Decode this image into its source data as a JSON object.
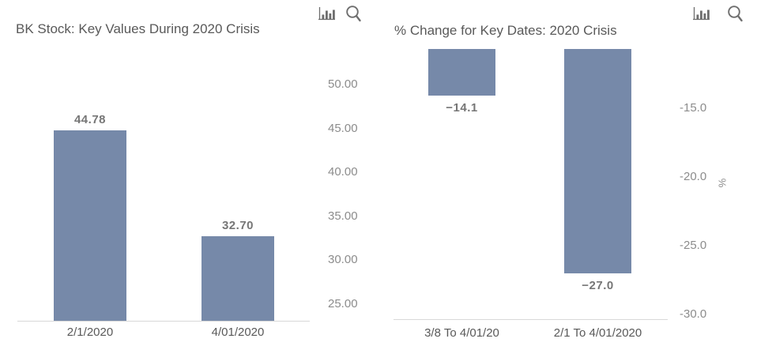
{
  "colors": {
    "bar": "#7689a9",
    "title_text": "#595959",
    "tick_text": "#8c8c8c",
    "axis_line": "#d8d8d8"
  },
  "toolbar": {
    "chart_type_icon": "bar-chart-icon",
    "zoom_icon": "magnifier-icon"
  },
  "chart_data": [
    {
      "type": "bar",
      "title": "BK Stock: Key Values During 2020 Crisis",
      "categories": [
        "2/1/2020",
        "4/01/2020"
      ],
      "values": [
        44.78,
        32.7
      ],
      "value_labels": [
        "44.78",
        "32.70"
      ],
      "xlabel": "",
      "ylabel": "",
      "yticks": [
        50,
        45,
        40,
        35,
        30,
        25
      ],
      "ytick_labels": [
        "50.00",
        "45.00",
        "40.00",
        "35.00",
        "30.00",
        "25.00"
      ],
      "ylim_displayed": [
        22.9,
        52.8
      ],
      "axis_side": "right",
      "grid": false,
      "bar_color": "#7689a9"
    },
    {
      "type": "bar",
      "title": "% Change for Key Dates: 2020 Crisis",
      "categories": [
        "3/8 To 4/01/20",
        "2/1 To 4/01/2020"
      ],
      "values": [
        -14.1,
        -27.0
      ],
      "value_labels": [
        "−14.1",
        "−27.0"
      ],
      "xlabel": "",
      "ylabel": "%",
      "yticks": [
        -15,
        -20,
        -25,
        -30
      ],
      "ytick_labels": [
        "-15.0",
        "-20.0",
        "-25.0",
        "-30.0"
      ],
      "ylim_displayed": [
        -30.4,
        -10.7
      ],
      "axis_side": "right",
      "grid": false,
      "bar_color": "#7689a9"
    }
  ]
}
